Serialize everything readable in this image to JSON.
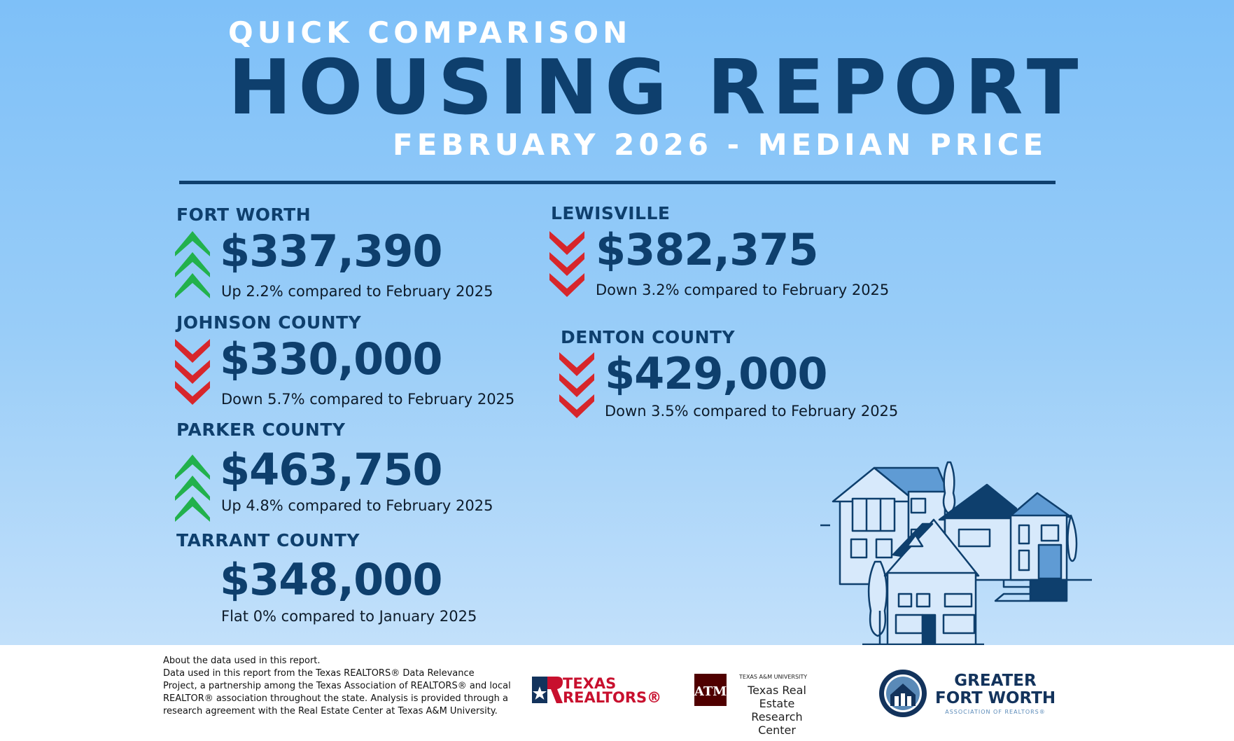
{
  "header": {
    "kicker": "QUICK COMPARISON",
    "title": "HOUSING REPORT",
    "subtitle": "FEBRUARY 2026 - MEDIAN PRICE"
  },
  "markets": [
    {
      "name": "FORT WORTH",
      "price": "$337,390",
      "change": "Up 2.2% compared to February 2025",
      "trend": "up"
    },
    {
      "name": "JOHNSON COUNTY",
      "price": "$330,000",
      "change": "Down 5.7% compared to February 2025",
      "trend": "down"
    },
    {
      "name": "PARKER COUNTY",
      "price": "$463,750",
      "change": "Up 4.8% compared to February 2025",
      "trend": "up"
    },
    {
      "name": "TARRANT COUNTY",
      "price": "$348,000",
      "change": "Flat 0% compared to January 2025",
      "trend": "flat"
    },
    {
      "name": "LEWISVILLE",
      "price": "$382,375",
      "change": "Down 3.2% compared to February 2025",
      "trend": "down"
    },
    {
      "name": "DENTON COUNTY",
      "price": "$429,000",
      "change": "Down 3.5% compared to February 2025",
      "trend": "down"
    }
  ],
  "colors": {
    "up": "#22b14c",
    "down": "#d7262b",
    "navy": "#0e3f6d"
  },
  "footer": {
    "about_lines": [
      "About the data used in this report.",
      "Data used in this report from the Texas REALTORS® Data Relevance",
      "Project, a partnership among the Texas Association of REALTORS® and local",
      "REALTOR® association throughout the state. Analysis is provided through a",
      "research agreement with the Real Estate Center at Texas A&M University."
    ],
    "logos": {
      "texas_realtors": {
        "line1": "TEXAS",
        "line2": "REALTORS®"
      },
      "tamu": {
        "small": "TEXAS A&M UNIVERSITY",
        "line1": "Texas Real Estate",
        "line2": "Research Center"
      },
      "gfw": {
        "line1": "GREATER",
        "line2": "FORT WORTH",
        "sub": "ASSOCIATION OF REALTORS®"
      }
    }
  }
}
